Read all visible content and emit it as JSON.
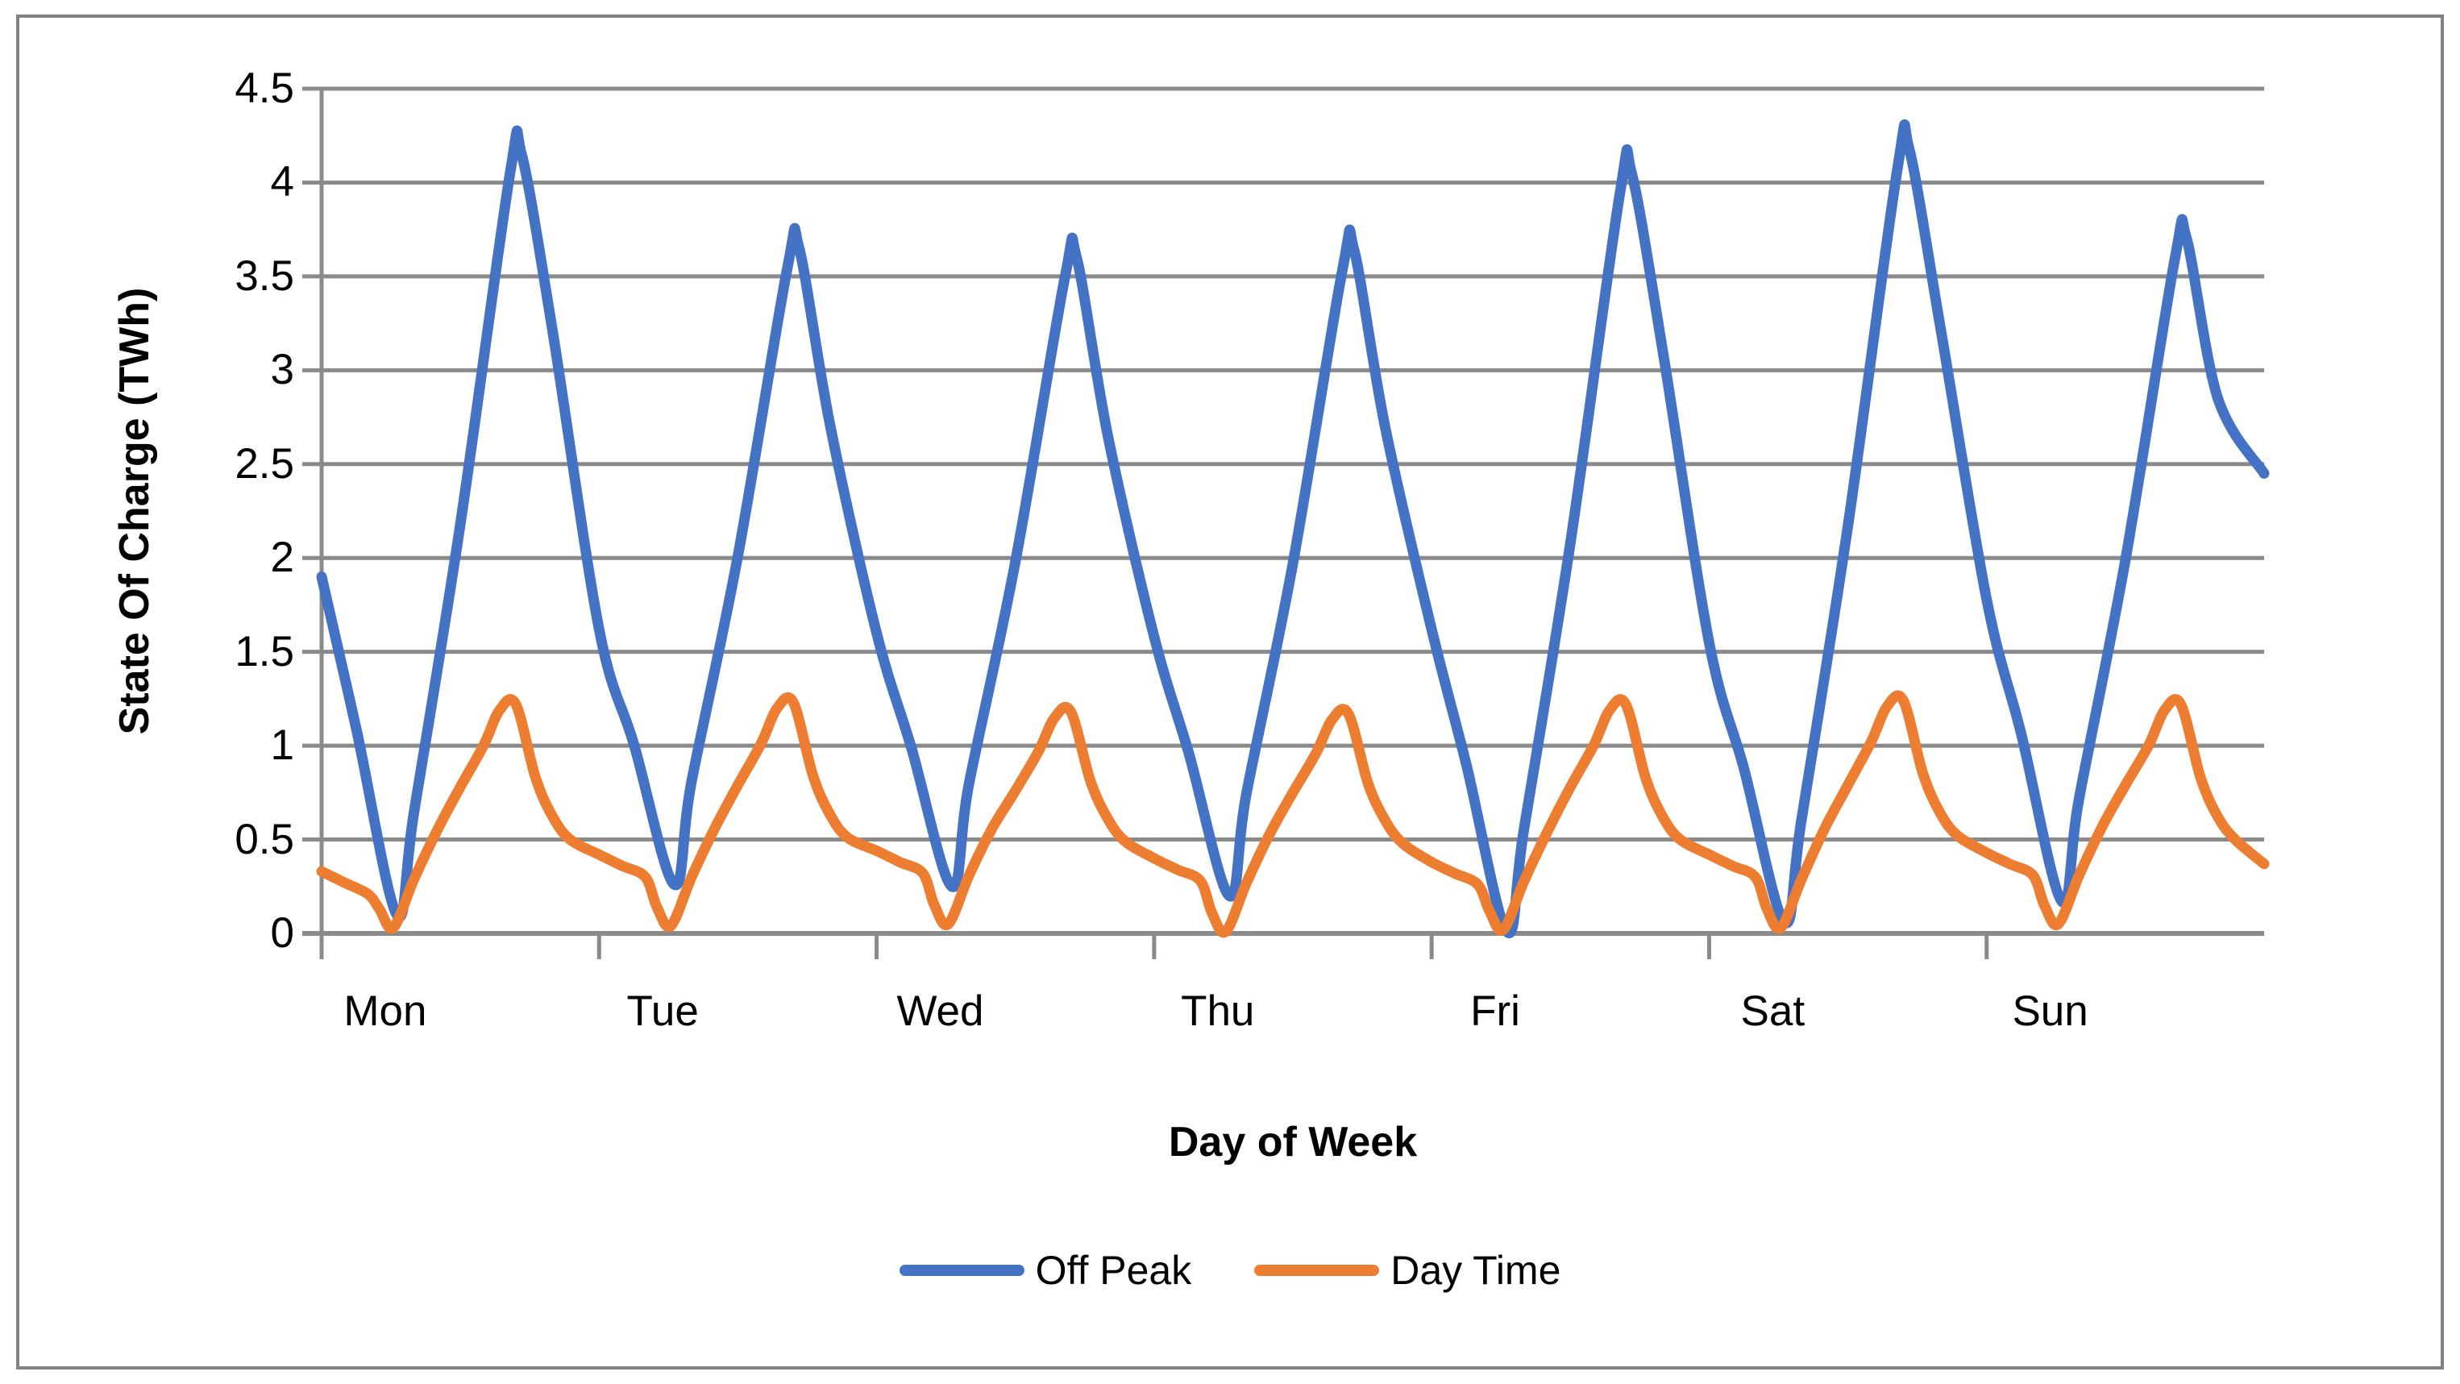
{
  "chart_data": {
    "type": "line",
    "title": "",
    "xlabel": "Day of Week",
    "ylabel": "State Of Charge (TWh)",
    "categories": [
      "Mon",
      "Tue",
      "Wed",
      "Thu",
      "Fri",
      "Sat",
      "Sun"
    ],
    "x_unit_note": "hours from Mon 00:00 to Sun 24:00",
    "x_range_hours": [
      0,
      168
    ],
    "hours_per_day": 24,
    "ylim": [
      0,
      4.5
    ],
    "y_ticks": [
      4.5,
      4,
      3.5,
      3,
      2.5,
      2,
      1.5,
      1,
      0.5,
      0
    ],
    "grid": "horizontal",
    "legend_position": "bottom",
    "daily_summary": {
      "off_peak_morning_min": [
        0.1,
        0.26,
        0.25,
        0.2,
        0.01,
        0.06,
        0.17
      ],
      "off_peak_evening_peak": [
        4.15,
        3.65,
        3.6,
        3.64,
        4.05,
        4.18,
        3.7
      ],
      "day_time_morning_min": [
        0.03,
        0.04,
        0.05,
        0.01,
        0.02,
        0.03,
        0.05
      ],
      "day_time_evening_peak": [
        1.22,
        1.23,
        1.18,
        1.17,
        1.22,
        1.24,
        1.22
      ]
    },
    "series": [
      {
        "name": "Off Peak",
        "color": "#4472C4",
        "points": [
          [
            0,
            1.9
          ],
          [
            3,
            1.09
          ],
          [
            6.5,
            0.1
          ],
          [
            8,
            0.65
          ],
          [
            12,
            2.18
          ],
          [
            16.3,
            4.05
          ],
          [
            17.3,
            4.15
          ],
          [
            20,
            3.2
          ],
          [
            24,
            1.62
          ],
          [
            27,
            1.01
          ],
          [
            30.5,
            0.26
          ],
          [
            32,
            0.81
          ],
          [
            36,
            2.01
          ],
          [
            40.3,
            3.55
          ],
          [
            41.3,
            3.65
          ],
          [
            44,
            2.7
          ],
          [
            48,
            1.6
          ],
          [
            51,
            0.99
          ],
          [
            54.5,
            0.25
          ],
          [
            56,
            0.8
          ],
          [
            60,
            1.98
          ],
          [
            64.3,
            3.5
          ],
          [
            65.3,
            3.6
          ],
          [
            68,
            2.65
          ],
          [
            72,
            1.58
          ],
          [
            75,
            0.96
          ],
          [
            78.5,
            0.2
          ],
          [
            80,
            0.75
          ],
          [
            84,
            1.97
          ],
          [
            88.3,
            3.54
          ],
          [
            89.3,
            3.64
          ],
          [
            92,
            2.69
          ],
          [
            96,
            1.62
          ],
          [
            99,
            0.9
          ],
          [
            102.5,
            0.01
          ],
          [
            104,
            0.56
          ],
          [
            108,
            2.08
          ],
          [
            112.3,
            3.95
          ],
          [
            113.3,
            4.05
          ],
          [
            116,
            3.1
          ],
          [
            120,
            1.55
          ],
          [
            123,
            0.88
          ],
          [
            126.5,
            0.06
          ],
          [
            128,
            0.61
          ],
          [
            132,
            2.17
          ],
          [
            136.3,
            4.08
          ],
          [
            137.3,
            4.18
          ],
          [
            140,
            3.23
          ],
          [
            144,
            1.78
          ],
          [
            147,
            1.06
          ],
          [
            150.5,
            0.17
          ],
          [
            152,
            0.72
          ],
          [
            156,
            1.99
          ],
          [
            160.3,
            3.6
          ],
          [
            161.3,
            3.7
          ],
          [
            164,
            2.85
          ],
          [
            168,
            2.45
          ]
        ]
      },
      {
        "name": "Day Time",
        "color": "#ED7D31",
        "points": [
          [
            0,
            0.33
          ],
          [
            2,
            0.27
          ],
          [
            4,
            0.21
          ],
          [
            5,
            0.13
          ],
          [
            6.2,
            0.03
          ],
          [
            8,
            0.29
          ],
          [
            10,
            0.55
          ],
          [
            12,
            0.78
          ],
          [
            14,
            1.0
          ],
          [
            15.4,
            1.19
          ],
          [
            16.8,
            1.22
          ],
          [
            18.5,
            0.83
          ],
          [
            20,
            0.62
          ],
          [
            21.5,
            0.5
          ],
          [
            24,
            0.42
          ],
          [
            26,
            0.36
          ],
          [
            28,
            0.3
          ],
          [
            29,
            0.14
          ],
          [
            30.2,
            0.04
          ],
          [
            32,
            0.3
          ],
          [
            34,
            0.56
          ],
          [
            36,
            0.79
          ],
          [
            38,
            1.01
          ],
          [
            39.4,
            1.2
          ],
          [
            40.8,
            1.23
          ],
          [
            42.5,
            0.84
          ],
          [
            44,
            0.63
          ],
          [
            45.5,
            0.51
          ],
          [
            48,
            0.44
          ],
          [
            50,
            0.38
          ],
          [
            52,
            0.32
          ],
          [
            53,
            0.15
          ],
          [
            54.2,
            0.05
          ],
          [
            56,
            0.31
          ],
          [
            58,
            0.56
          ],
          [
            60,
            0.76
          ],
          [
            62,
            0.97
          ],
          [
            63.4,
            1.15
          ],
          [
            64.8,
            1.18
          ],
          [
            66.5,
            0.81
          ],
          [
            68,
            0.61
          ],
          [
            69.5,
            0.49
          ],
          [
            72,
            0.4
          ],
          [
            74,
            0.34
          ],
          [
            76,
            0.28
          ],
          [
            77,
            0.11
          ],
          [
            78.2,
            0.01
          ],
          [
            80,
            0.27
          ],
          [
            82,
            0.53
          ],
          [
            84,
            0.75
          ],
          [
            86,
            0.96
          ],
          [
            87.4,
            1.14
          ],
          [
            88.8,
            1.17
          ],
          [
            90.5,
            0.8
          ],
          [
            92,
            0.6
          ],
          [
            93.5,
            0.48
          ],
          [
            96,
            0.38
          ],
          [
            98,
            0.32
          ],
          [
            100,
            0.26
          ],
          [
            101,
            0.12
          ],
          [
            102.2,
            0.02
          ],
          [
            104,
            0.28
          ],
          [
            106,
            0.54
          ],
          [
            108,
            0.78
          ],
          [
            110,
            1.0
          ],
          [
            111.4,
            1.19
          ],
          [
            112.8,
            1.22
          ],
          [
            114.5,
            0.83
          ],
          [
            116,
            0.62
          ],
          [
            117.5,
            0.5
          ],
          [
            120,
            0.42
          ],
          [
            122,
            0.36
          ],
          [
            124,
            0.3
          ],
          [
            125,
            0.13
          ],
          [
            126.2,
            0.03
          ],
          [
            128,
            0.29
          ],
          [
            130,
            0.56
          ],
          [
            132,
            0.79
          ],
          [
            134,
            1.02
          ],
          [
            135.4,
            1.21
          ],
          [
            136.8,
            1.24
          ],
          [
            138.5,
            0.85
          ],
          [
            140,
            0.64
          ],
          [
            141.5,
            0.52
          ],
          [
            144,
            0.43
          ],
          [
            146,
            0.37
          ],
          [
            148,
            0.31
          ],
          [
            149,
            0.15
          ],
          [
            150.2,
            0.05
          ],
          [
            152,
            0.31
          ],
          [
            154,
            0.57
          ],
          [
            156,
            0.79
          ],
          [
            158,
            1.0
          ],
          [
            159.4,
            1.19
          ],
          [
            160.8,
            1.22
          ],
          [
            162.5,
            0.83
          ],
          [
            164,
            0.62
          ],
          [
            165.5,
            0.5
          ],
          [
            168,
            0.37
          ]
        ]
      }
    ]
  },
  "legend": {
    "items": [
      {
        "label": "Off Peak",
        "color": "#4472C4"
      },
      {
        "label": "Day Time",
        "color": "#ED7D31"
      }
    ]
  },
  "colors": {
    "off_peak": "#4472C4",
    "day_time": "#ED7D31",
    "gridline": "#8A8A8A",
    "axis": "#8A8A8A",
    "text": "#000000",
    "frame_border": "#808080",
    "background": "#FFFFFF"
  }
}
